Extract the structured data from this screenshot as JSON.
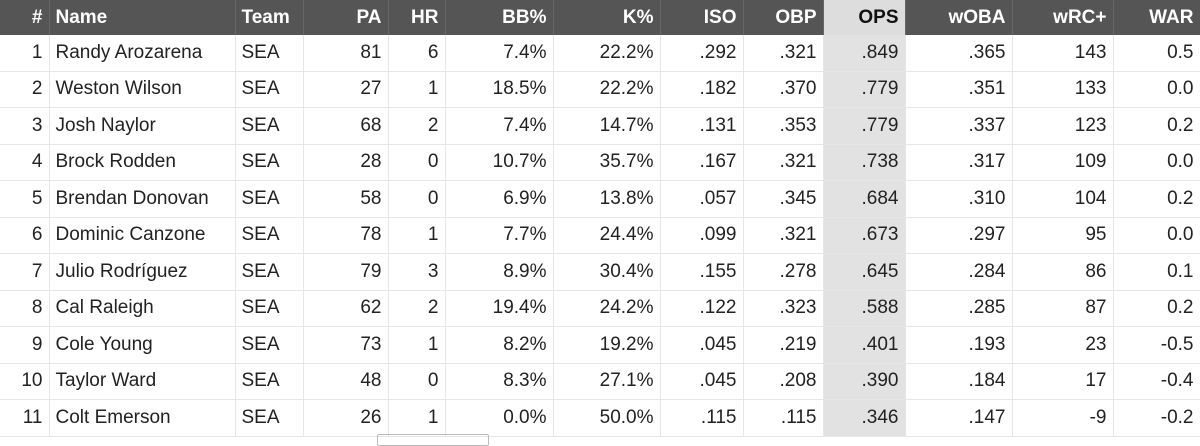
{
  "table": {
    "columns": [
      "#",
      "Name",
      "Team",
      "PA",
      "HR",
      "BB%",
      "K%",
      "ISO",
      "OBP",
      "OPS",
      "wOBA",
      "wRC+",
      "WAR"
    ],
    "rows": [
      [
        "1",
        "Randy Arozarena",
        "SEA",
        "81",
        "6",
        "7.4%",
        "22.2%",
        ".292",
        ".321",
        ".849",
        ".365",
        "143",
        "0.5"
      ],
      [
        "2",
        "Weston Wilson",
        "SEA",
        "27",
        "1",
        "18.5%",
        "22.2%",
        ".182",
        ".370",
        ".779",
        ".351",
        "133",
        "0.0"
      ],
      [
        "3",
        "Josh Naylor",
        "SEA",
        "68",
        "2",
        "7.4%",
        "14.7%",
        ".131",
        ".353",
        ".779",
        ".337",
        "123",
        "0.2"
      ],
      [
        "4",
        "Brock Rodden",
        "SEA",
        "28",
        "0",
        "10.7%",
        "35.7%",
        ".167",
        ".321",
        ".738",
        ".317",
        "109",
        "0.0"
      ],
      [
        "5",
        "Brendan Donovan",
        "SEA",
        "58",
        "0",
        "6.9%",
        "13.8%",
        ".057",
        ".345",
        ".684",
        ".310",
        "104",
        "0.2"
      ],
      [
        "6",
        "Dominic Canzone",
        "SEA",
        "78",
        "1",
        "7.7%",
        "24.4%",
        ".099",
        ".321",
        ".673",
        ".297",
        "95",
        "0.0"
      ],
      [
        "7",
        "Julio Rodríguez",
        "SEA",
        "79",
        "3",
        "8.9%",
        "30.4%",
        ".155",
        ".278",
        ".645",
        ".284",
        "86",
        "0.1"
      ],
      [
        "8",
        "Cal Raleigh",
        "SEA",
        "62",
        "2",
        "19.4%",
        "24.2%",
        ".122",
        ".323",
        ".588",
        ".285",
        "87",
        "0.2"
      ],
      [
        "9",
        "Cole Young",
        "SEA",
        "73",
        "1",
        "8.2%",
        "19.2%",
        ".045",
        ".219",
        ".401",
        ".193",
        "23",
        "-0.5"
      ],
      [
        "10",
        "Taylor Ward",
        "SEA",
        "48",
        "0",
        "8.3%",
        "27.1%",
        ".045",
        ".208",
        ".390",
        ".184",
        "17",
        "-0.4"
      ],
      [
        "11",
        "Colt Emerson",
        "SEA",
        "26",
        "1",
        "0.0%",
        "50.0%",
        ".115",
        ".115",
        ".346",
        ".147",
        "-9",
        "-0.2"
      ]
    ]
  }
}
